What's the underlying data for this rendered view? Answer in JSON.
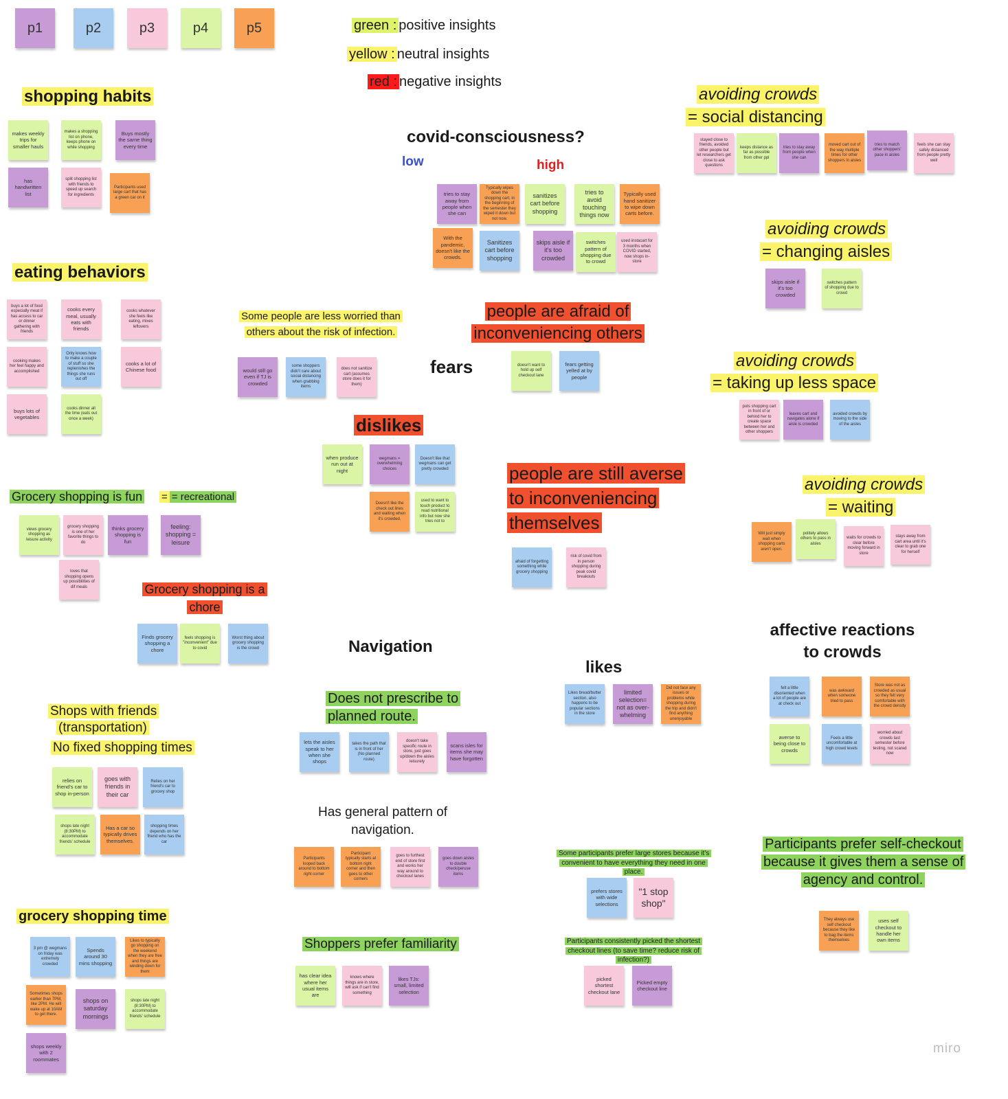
{
  "legend": {
    "green_key": "green :",
    "green_val": "positive insights",
    "yellow_key": "yellow :",
    "yellow_val": "neutral insights",
    "red_key": "red :",
    "red_val": "negative insights"
  },
  "participants": [
    "p1",
    "p2",
    "p3",
    "p4",
    "p5"
  ],
  "headings": {
    "shopping_habits": "shopping habits",
    "eating_behaviors": "eating behaviors",
    "fun": "Grocery shopping is fun",
    "recreational": "= recreational",
    "chore": "Grocery shopping is a chore",
    "friends_1": "Shops with friends",
    "friends_2": "(transportation)",
    "friends_3": "No fixed shopping times",
    "time": "grocery shopping time",
    "covid": "covid-consciousness?",
    "low": "low",
    "high": "high",
    "less_worried": "Some people are less worried than others about the risk of infection.",
    "fears": "fears",
    "afraid": "people are afraid of inconveniencing others",
    "dislikes": "dislikes",
    "averse": "people are still averse to inconveniencing themselves",
    "navigation": "Navigation",
    "no_route": "Does not prescribe to planned route.",
    "general_pattern": "Has general pattern of navigation.",
    "familiarity": "Shoppers prefer familiarity",
    "likes": "likes",
    "one_stop": "Some participants prefer large stores because it's convenient to have everything they need in one place.",
    "shortest": "Participants consistently picked the shortest checkout lines (to save time? reduce risk of infection?)",
    "ac_social_1": "avoiding crowds",
    "ac_social_2": "= social distancing",
    "ac_aisles_1": "avoiding crowds",
    "ac_aisles_2": "= changing aisles",
    "ac_space_1": "avoiding crowds",
    "ac_space_2": "= taking up less space",
    "ac_wait_1": "avoiding crowds",
    "ac_wait_2": "= waiting",
    "affective": "affective reactions to crowds",
    "selfcheck": "Participants prefer self-checkout because it gives them a sense of agency and control."
  },
  "notes": {
    "sh1": "makes weekly trips for smaller hauls",
    "sh2": "makes a shopping list on phone, keeps phone on while shopping",
    "sh3": "Buys mostly the same thing every time",
    "sh4": "has handwritten list",
    "sh5": "split shopping list with friends to speed up search for ingredients",
    "sh6": "Participants used large cart that has a green car on it",
    "eb1": "buys a lot of food especially meat if has access to car or dinner gathering with friends",
    "eb2": "cooks every meal, usually eats with friends",
    "eb3": "cooks whatever she feels like eating, mixes leftovers",
    "eb4": "cooking makes her feel happy and accomplished",
    "eb5": "Only knows how to make a couple of stuff so she replenishes the things she runs out off",
    "eb6": "cooks a lot of Chinese food",
    "eb7": "buys lots of vegetables",
    "eb8": "cooks dinner all the time (eats out once a week)",
    "fun1": "views grocery shopping as leisure activity",
    "fun2": "grocery shopping is one of her favorite things to do",
    "fun3": "thinks grocery shopping is fun",
    "fun4": "feeling: shopping = leisure",
    "fun5": "loves that shopping opens up possibilities of dif meals",
    "ch1": "Finds grocery shopping a chore",
    "ch2": "feels shopping is \"inconvenient\" due to covid",
    "ch3": "Worst thing about grocery shopping is the crowd",
    "fr1": "relies on friend's car to shop in-person",
    "fr2": "goes with friends in their car",
    "fr3": "Relies on her friend's car to grocery shop",
    "fr4": "shops late night (8:30PM) to accommodate friends' schedule",
    "fr5": "Has a car so typically drives themselves.",
    "fr6": "shopping times depends on her friend who has the car",
    "gt1": "3 pm @ wegmans on friday was extremely crowded",
    "gt2": "Spends around 30 mins shopping",
    "gt3": "Likes to typically go shopping on the weekend when they are free and things are winding down for them",
    "gt4": "Sometimes shops earlier than 7PM, like 2PM. He will wake up at 10AM to get there.",
    "gt5": "shops on saturday mornings",
    "gt6": "shops late night (8:30PM) to accommodate friends' schedule",
    "gt7": "shops weekly with 2 roommates",
    "cv1": "tries to stay away from people when she can",
    "cv2": "Typically wipes down the shopping cart, in the beginning of the semester they wiped it down but not now.",
    "cv3": "sanitizes cart before shopping",
    "cv4": "tries to avoid touching things now",
    "cv5": "Typically used hand sanitizer to wipe down carts before.",
    "cv6": "With the pandemic, doesn't like the crowds.",
    "cv7": "Sanitizes cart before shopping",
    "cv8": "skips aisle if it's too crowded",
    "cv9": "switches pattern of shopping due to crowd",
    "cv10": "used instacart for 3 months when COVID started, now shops in-store",
    "lw1": "would still go even if TJ is crowded",
    "lw2": "some shoppers didn't care about social distancing when grabbing items",
    "lw3": "does not sanitize cart (assumes store does it for them)",
    "af1": "doesn't want to hold up self checkout lane",
    "af2": "fears getting yelled at by people",
    "dl1": "when produce run out at night",
    "dl2": "wegmans = overwhelming choices",
    "dl3": "Doesn't like that wegmans can get pretty crowded",
    "dl4": "Doesn't like the check out lines and waiting when it's crowded.",
    "dl5": "used to want to touch product to read nutritional info but now she tries not to",
    "av1": "afraid of forgetting something while grocery shopping",
    "av2": "risk of covid from in person shopping during peak covid breakouts",
    "nr1": "lets the aisles speak to her when she shops",
    "nr2": "takes the path that is in front of her (No planned route)",
    "nr3": "doesn't take specific route in store, just goes up/down the aisles leisurely",
    "nr4": "scans isles for items she may have forgotten",
    "gp1": "Participants looped back around to bottom right corner",
    "gp2": "Participant typically starts at bottom right corner and then goes to other corners",
    "gp3": "goes to furthest end of store first and works her way around to checkout lanes",
    "gp4": "goes down aisles to double check/peruse items",
    "fm1": "has clear idea where her usual items are",
    "fm2": "knows where things are in store, will ask if can't find something",
    "fm3": "likes TJs: small, limited selection",
    "lk1": "Likes bread/butter section, also happens to be popular sections in the store",
    "lk2": "limited selection= not as over-whelming",
    "lk3": "Did not face any issues or problems while shopping during the trip and didn't find anything unenjoyable",
    "os1": "prefers stores with wide selections",
    "os2": "\"1 stop shop\"",
    "sc1": "picked shortest checkout lane",
    "sc2": "Picked empty checkout line",
    "sd1": "stayed close to friends, avoided other people but let researchers get close to ask questions",
    "sd2": "keeps distance as far as possible from other ppl",
    "sd3": "tries to stay away from people when she can",
    "sd4": "moved cart out of the way multiple times for other shoppers in aisles",
    "sd5": "tries to match other shoppers' pace in aisles",
    "sd6": "feels she can stay safely distanced from people pretty well",
    "ca1": "skips aisle if it's too crowded",
    "ca2": "switches pattern of shopping due to crowd",
    "ls1": "puts shopping cart in front of or behind her to create space between her and other shoppers",
    "ls2": "leaves cart and navigates alone if aisle is crowded",
    "ls3": "avoided crowds by moving to the side of the aisles",
    "wt1": "Will just simply wait when shopping carts aren't open.",
    "wt2": "politely allows others to pass in aisles",
    "wt3": "waits for crowds to clear before moving forward in store",
    "wt4": "stays away from cart area until it's clear to grab one for herself",
    "ar1": "felt a little disoriented when a lot of people are at check out",
    "ar2": "was awkward when someone tried to pass",
    "ar3": "Store was not as crowded as usual so they felt very comfortable with the crowd density",
    "ar4": "averse to being close to crowds",
    "ar5": "Feels a little uncomfortable at high crowd levels",
    "ar6": "worried about crowds last semester before testing, not scared now",
    "sf1": "They always use self checkout because they like to bag the items themselves",
    "sf2": "uses self checkout to handle her own items"
  },
  "watermark": "miro",
  "colors": {
    "purple": "#c79bd6",
    "blue": "#a9cdf0",
    "pink": "#f8c9da",
    "green": "#daf5a5",
    "orange": "#f8a155",
    "highlight_yellow": "#fbf46a",
    "highlight_green": "#8fd35f",
    "highlight_red": "#f0502e"
  }
}
